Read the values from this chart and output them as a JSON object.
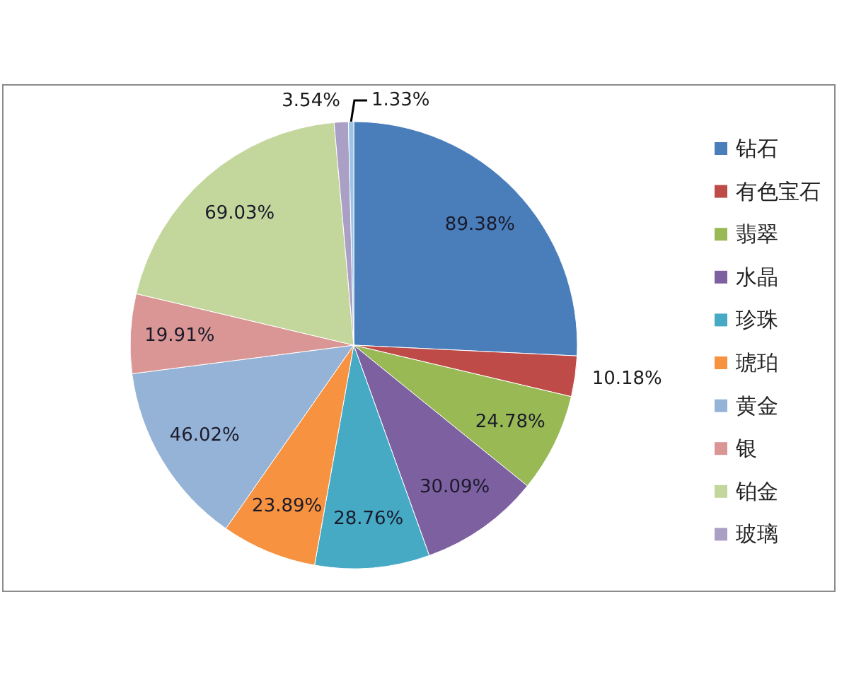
{
  "chart_data": {
    "type": "pie",
    "categories": [
      "钻石",
      "有色宝石",
      "翡翠",
      "水晶",
      "珍珠",
      "琥珀",
      "黄金",
      "银",
      "铂金",
      "玻璃",
      null
    ],
    "values": [
      89.38,
      10.18,
      24.78,
      30.09,
      28.76,
      23.89,
      46.02,
      19.91,
      69.03,
      3.54,
      1.33
    ],
    "colors": [
      "#4a7ebb",
      "#be4b48",
      "#98b954",
      "#7d60a0",
      "#46aac5",
      "#f69240",
      "#95b3d7",
      "#d99694",
      "#c3d69b",
      "#aa9fc4",
      "#9dc3e6"
    ],
    "value_labels": [
      "89.38%",
      "10.18%",
      "24.78%",
      "30.09%",
      "28.76%",
      "23.89%",
      "46.02%",
      "19.91%",
      "69.03%",
      "3.54%",
      "1.33%"
    ],
    "legend": "right"
  }
}
